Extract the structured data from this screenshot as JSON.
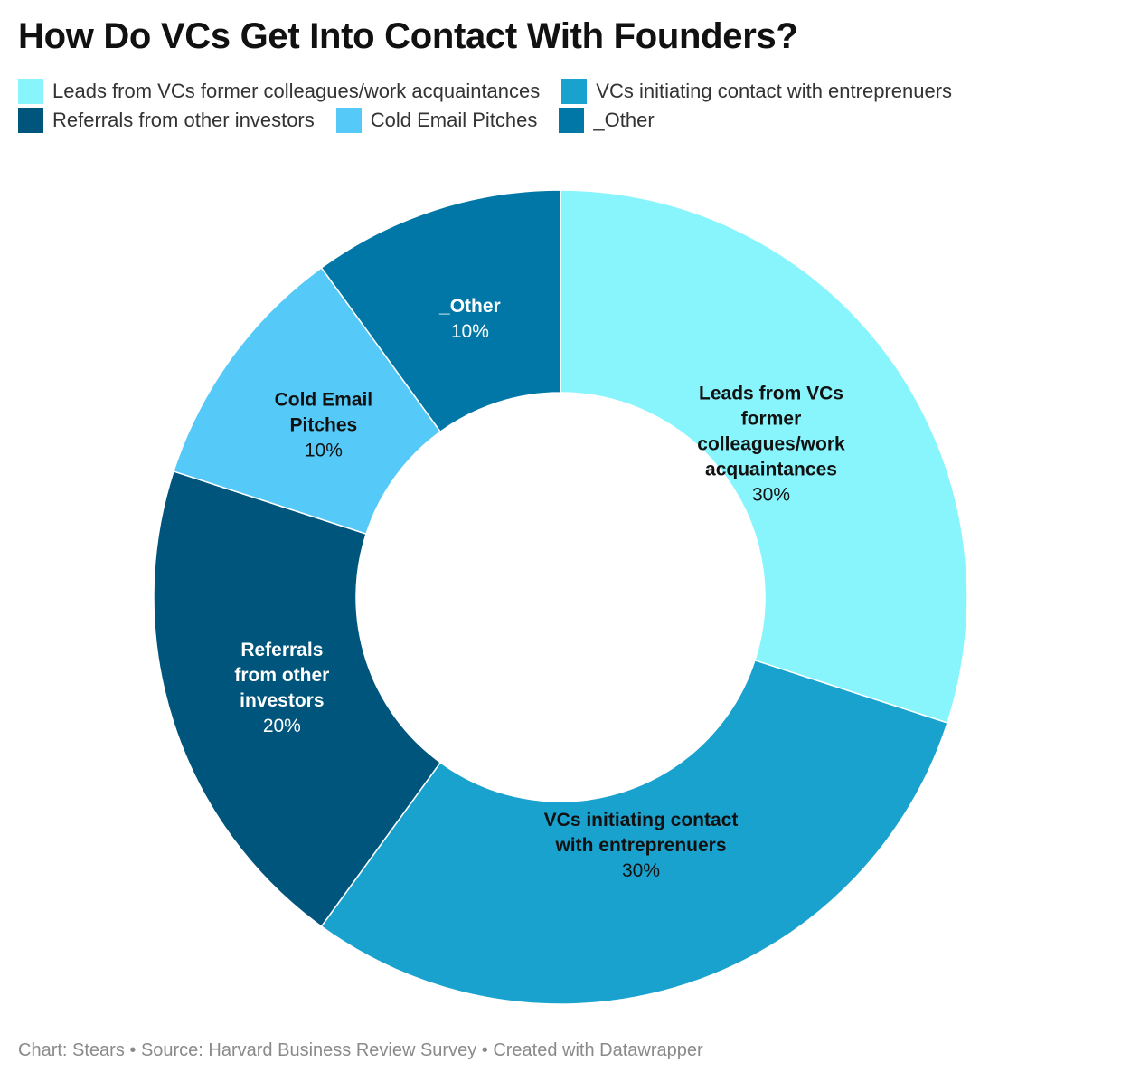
{
  "chart_data": {
    "type": "pie",
    "title": "How Do VCs Get Into Contact With Founders?",
    "legend_position": "top",
    "slices": [
      {
        "name": "Leads from VCs former colleagues/work acquaintances",
        "label_lines": [
          "Leads from VCs",
          "former",
          "colleagues/work",
          "acquaintances"
        ],
        "value": 30,
        "value_label": "30%",
        "color": "#88f5fd",
        "text_color": "#111111"
      },
      {
        "name": "VCs initiating contact with entrepreneurs",
        "label_lines": [
          "VCs initiating contact",
          "with entreprenuers"
        ],
        "value": 30,
        "value_label": "30%",
        "color": "#1aa2ce",
        "text_color": "#111111"
      },
      {
        "name": "Referrals from other investors",
        "label_lines": [
          "Referrals",
          "from other",
          "investors"
        ],
        "value": 20,
        "value_label": "20%",
        "color": "#00557c",
        "text_color": "#ffffff"
      },
      {
        "name": "Cold Email Pitches",
        "label_lines": [
          "Cold Email",
          "Pitches"
        ],
        "value": 10,
        "value_label": "10%",
        "color": "#55c9f8",
        "text_color": "#111111"
      },
      {
        "name": "_Other",
        "label_lines": [
          "_Other"
        ],
        "value": 10,
        "value_label": "10%",
        "color": "#0077a6",
        "text_color": "#ffffff"
      }
    ],
    "legend": [
      {
        "label": "Leads from VCs former colleagues/work acquaintances",
        "color": "#88f5fd"
      },
      {
        "label": "VCs initiating contact with entreprenuers",
        "color": "#1aa2ce"
      },
      {
        "label": "Referrals from other investors",
        "color": "#00557c"
      },
      {
        "label": "Cold Email Pitches",
        "color": "#55c9f8"
      },
      {
        "label": "_Other",
        "color": "#0077a6"
      }
    ]
  },
  "footer": {
    "text": "Chart: Stears • Source: Harvard Business Review Survey • Created with Datawrapper"
  }
}
